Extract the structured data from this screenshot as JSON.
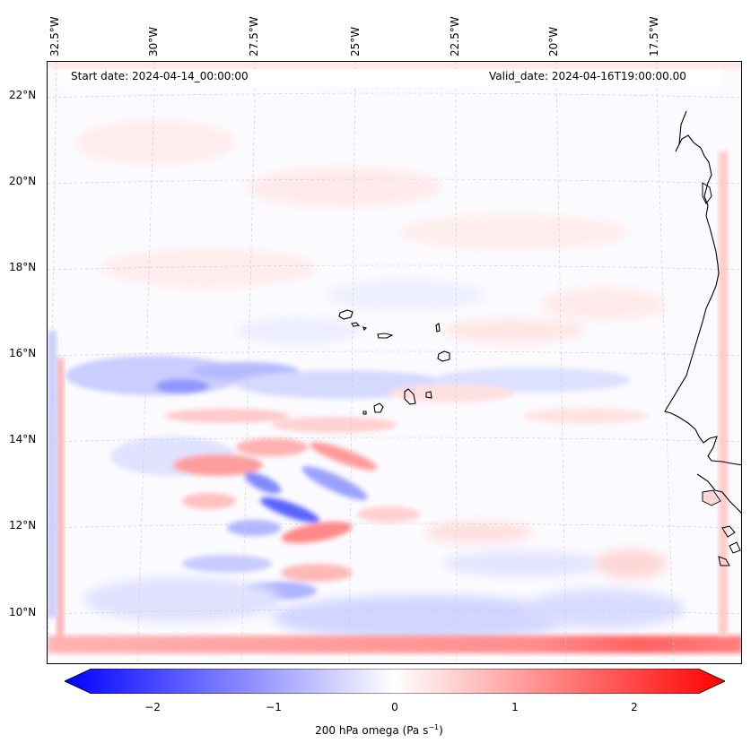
{
  "header": {
    "start_date": "Start date: 2024-04-14_00:00:00",
    "valid_date": "Valid_date: 2024-04-16T19:00:00.00"
  },
  "longitude_labels": [
    "32.5°W",
    "30°W",
    "27.5°W",
    "25°W",
    "22.5°W",
    "20°W",
    "17.5°W"
  ],
  "latitude_labels": [
    "22°N",
    "20°N",
    "18°N",
    "16°N",
    "14°N",
    "12°N",
    "10°N"
  ],
  "colorbar": {
    "ticks": [
      "−2",
      "−1",
      "0",
      "1",
      "2"
    ],
    "label": "200 hPa omega (Pa s",
    "label_exp": "−1",
    "label_tail": ")",
    "min_color": "#0000ff",
    "mid_color": "#ffffff",
    "max_color": "#ff0000"
  },
  "map": {
    "field": "200 hPa omega",
    "colormap": "bwr",
    "gridlines": "dashed gray"
  }
}
